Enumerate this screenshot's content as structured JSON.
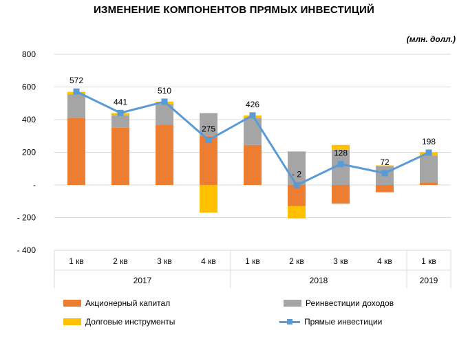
{
  "title": "ИЗМЕНЕНИЕ КОМПОНЕНТОВ ПРЯМЫХ ИНВЕСТИЦИЙ",
  "units": "(млн. долл.)",
  "colors": {
    "equity": "#ed7d31",
    "reinvest": "#a5a5a5",
    "debt": "#ffc000",
    "fdi": "#5b9bd5",
    "grid": "#d9d9d9"
  },
  "chart_data": {
    "type": "bar",
    "stacked": true,
    "categories": [
      "1 кв",
      "2 кв",
      "3 кв",
      "4 кв",
      "1 кв",
      "2 кв",
      "3 кв",
      "4 кв",
      "1 кв"
    ],
    "year_groups": [
      {
        "label": "2017",
        "count": 4
      },
      {
        "label": "2018",
        "count": 4
      },
      {
        "label": "2019",
        "count": 1
      }
    ],
    "ylim": [
      -400,
      800
    ],
    "yticks": [
      -400,
      -200,
      0,
      200,
      400,
      600,
      800
    ],
    "ytick_labels": [
      "- 400",
      "- 200",
      "-",
      "200",
      "400",
      "600",
      "800"
    ],
    "grid": true,
    "legend_position": "bottom",
    "series": [
      {
        "name": "Акционерный капитал",
        "type": "bar",
        "color": "#ed7d31",
        "values": [
          410,
          350,
          370,
          300,
          245,
          -130,
          -115,
          -45,
          15
        ]
      },
      {
        "name": "Реинвестиции доходов",
        "type": "bar",
        "color": "#a5a5a5",
        "values": [
          145,
          75,
          125,
          140,
          165,
          205,
          215,
          115,
          165
        ]
      },
      {
        "name": "Долговые инструменты",
        "type": "bar",
        "color": "#ffc000",
        "values": [
          15,
          15,
          15,
          -170,
          15,
          -75,
          30,
          5,
          20
        ]
      },
      {
        "name": "Прямые инвестиции",
        "type": "line",
        "color": "#5b9bd5",
        "values": [
          572,
          441,
          510,
          275,
          426,
          -2,
          128,
          72,
          198
        ]
      }
    ],
    "data_labels": [
      "572",
      "441",
      "510",
      "275",
      "426",
      "- 2",
      "128",
      "72",
      "198"
    ]
  }
}
